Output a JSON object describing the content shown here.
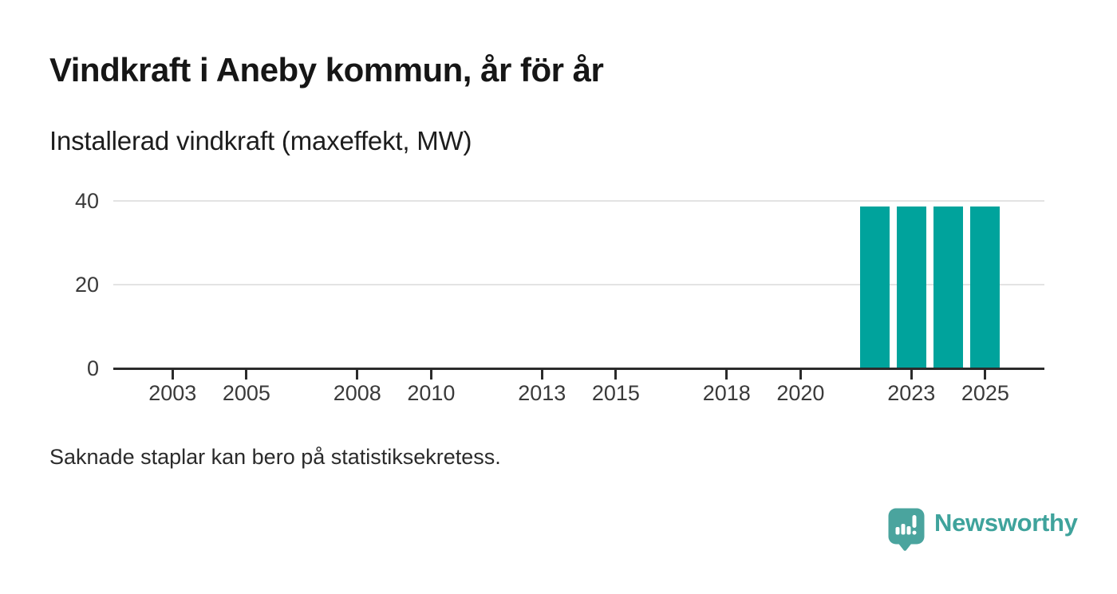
{
  "header": {
    "title": "Vindkraft i Aneby kommun, år för år",
    "subtitle": "Installerad vindkraft (maxeffekt, MW)"
  },
  "chart_data": {
    "type": "bar",
    "title": "Vindkraft i Aneby kommun, år för år",
    "ylabel": "Installerad vindkraft (maxeffekt, MW)",
    "unit": "MW",
    "x_domain": [
      2002,
      2026
    ],
    "x_tick_years": [
      2003,
      2005,
      2008,
      2010,
      2013,
      2015,
      2018,
      2020,
      2023,
      2025
    ],
    "y_ticks": [
      0,
      20,
      40
    ],
    "ylim": [
      0,
      43
    ],
    "grid": "horizontal-only",
    "legend": "none",
    "bars": [
      {
        "year": 2022,
        "value": 38.5
      },
      {
        "year": 2023,
        "value": 38.5
      },
      {
        "year": 2024,
        "value": 38.5
      },
      {
        "year": 2025,
        "value": 38.5
      }
    ],
    "note": "Years 2002–2021 show no bars (zero or suppressed values)",
    "bar_color": "#00a39c",
    "axis_color": "#2b2b2b",
    "grid_color": "#e3e3e3",
    "label_color": "#3a3a3a"
  },
  "footnote": {
    "text": "Saknade staplar kan bero på statistiksekretess."
  },
  "branding": {
    "name": "Newsworthy",
    "logo_icon": "newsworthy-speech-bubble-bar-chart-icon",
    "color": "#3fa39c",
    "icon_color": "#4aa49e"
  }
}
